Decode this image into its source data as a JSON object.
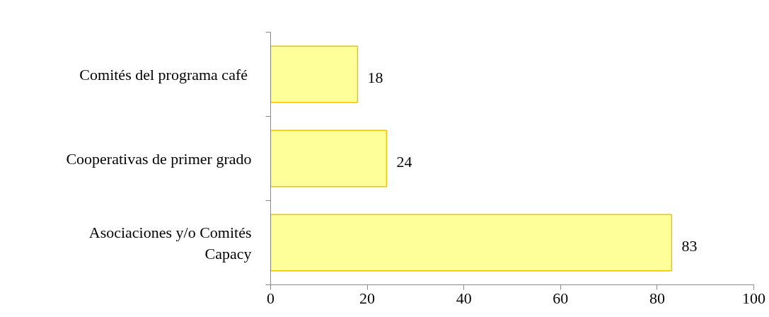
{
  "chart_data": {
    "type": "bar",
    "orientation": "horizontal",
    "categories": [
      "Comités del programa  café",
      "Cooperativas de primer grado",
      "Asociaciones y/o Comités Capacy"
    ],
    "values": [
      18,
      24,
      83
    ],
    "color": "#ffff99",
    "xlim": [
      0,
      100
    ],
    "xticks": [
      0,
      20,
      40,
      60,
      80,
      100
    ],
    "grid": false,
    "data_labels": true
  }
}
